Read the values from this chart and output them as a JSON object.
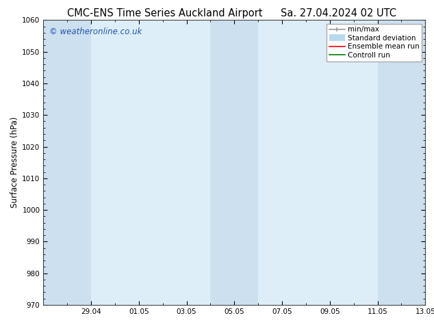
{
  "title_left": "CMC-ENS Time Series Auckland Airport",
  "title_right": "Sa. 27.04.2024 02 UTC",
  "ylabel": "Surface Pressure (hPa)",
  "ylim": [
    970,
    1060
  ],
  "yticks": [
    970,
    980,
    990,
    1000,
    1010,
    1020,
    1030,
    1040,
    1050,
    1060
  ],
  "xtick_labels": [
    "29.04",
    "01.05",
    "03.05",
    "05.05",
    "07.05",
    "09.05",
    "11.05",
    "13.05"
  ],
  "xtick_positions": [
    2,
    4,
    6,
    8,
    10,
    12,
    14,
    16
  ],
  "xlim": [
    0,
    16
  ],
  "shaded_bands": [
    {
      "x_start": 0.0,
      "x_end": 2.0,
      "color": "#cce0f0"
    },
    {
      "x_start": 7.0,
      "x_end": 9.0,
      "color": "#cce0f0"
    },
    {
      "x_start": 14.0,
      "x_end": 16.0,
      "color": "#cce0f0"
    }
  ],
  "plot_bg_color": "#ddeef8",
  "watermark": "© weatheronline.co.uk",
  "watermark_color": "#2255aa",
  "background_color": "#ffffff",
  "legend_items": [
    {
      "label": "min/max",
      "color": "#999999",
      "lw": 1.2,
      "style": "caps"
    },
    {
      "label": "Standard deviation",
      "color": "#b8d8ee",
      "lw": 7,
      "style": "solid"
    },
    {
      "label": "Ensemble mean run",
      "color": "#ff0000",
      "lw": 1.2,
      "style": "solid"
    },
    {
      "label": "Controll run",
      "color": "#008000",
      "lw": 1.2,
      "style": "solid"
    }
  ],
  "title_fontsize": 10.5,
  "axis_label_fontsize": 8.5,
  "tick_fontsize": 7.5,
  "legend_fontsize": 7.5,
  "watermark_fontsize": 8.5
}
